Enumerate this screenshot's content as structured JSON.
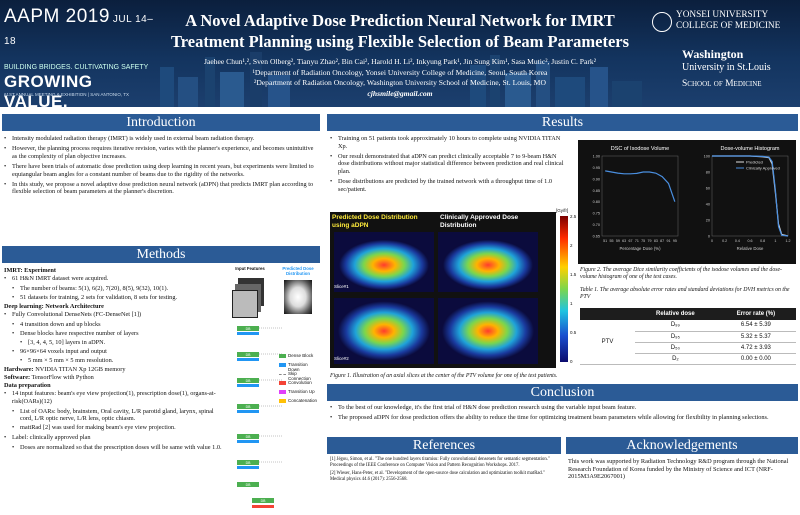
{
  "header": {
    "conf_main": "AAPM 2019",
    "conf_dates": "JUL 14–18",
    "tagline1": "BUILDING BRIDGES. CULTIVATING SAFETY",
    "tagline2": "GROWING VALUE.",
    "tagline3": "61ST ANNUAL MEETING & EXHIBITION | SAN ANTONIO, TX",
    "title_line1": "A Novel Adaptive Dose Prediction Neural Network for IMRT",
    "title_line2": "Treatment Planning using Flexible Selection of Beam Parameters",
    "authors": "Jaehee Chun¹,², Sven Olberg², Tianyu Zhao², Bin Cai², Harold H. Li², Inkyung Park¹, Jin Sung Kim¹, Sasa Mutic², Justin C. Park²",
    "affil1": "¹Department of Radiation Oncology, Yonsei University College of Medicine, Seoul, South Korea",
    "affil2": "²Department of Radiation Oncology, Washington University School of Medicine, St. Louis, MO",
    "email": "cjhsmile@gmail.com",
    "logo_yonsei1": "YONSEI UNIVERSITY",
    "logo_yonsei2": "COLLEGE OF MEDICINE",
    "logo_wash1": "Washington",
    "logo_wash2": "University in St.Louis",
    "logo_wash3": "School of Medicine"
  },
  "sections": {
    "intro": "Introduction",
    "methods": "Methods",
    "results": "Results",
    "conclusion": "Conclusion",
    "references": "References",
    "ack": "Acknowledgements"
  },
  "intro": [
    "Intensity modulated radiation therapy (IMRT) is widely used in external beam radiation therapy.",
    "However, the planning process requires iterative revision, varies with the planner's experience, and becomes unintuitive as the complexity of plan objective increases.",
    "There have been trials of automatic dose prediction using deep learning in recent years, but experiments were limited to equiangular beam angles for a constant number of beams due to the rigidity of the networks.",
    "In this study, we propose a novel adaptive dose prediction neural network (aDPN) that predicts IMRT plan according to flexible selection of beam parameters at the planner's discretion."
  ],
  "methods": {
    "h_exp": "IMRT: Experiment",
    "exp1": "61 H&N IMRT dataset were acquired.",
    "exp1a": "The number of beams: 5(1), 6(2), 7(20), 8(5), 9(32), 10(1).",
    "exp1b": "51 datasets for training, 2 sets for validation, 8 sets for testing.",
    "h_net": "Deep learning: Network Architecture",
    "net1": "Fully Convolutional DenseNets (FC-DenseNet [1])",
    "net1a": "4 transition down and up blocks",
    "net1b": "Dense blocks have respective number of layers",
    "net1b1": "[3, 4, 4, 5, 10] layers in aDPN.",
    "net1c": "96×96×64 voxels input and output",
    "net1c1": "5 mm × 5 mm × 5 mm resolution.",
    "hw_label": "Hardware:",
    "hw": " NVIDIA TITAN Xp 12GB memory",
    "sw_label": "Software:",
    "sw": " TensorFlow with Python",
    "h_data": "Data preparation",
    "d1": "14 input features: beam's eye view projection(1), prescription dose(1), organs-at-risk(OARs)(12)",
    "d1a": "List of OARs: body, brainstem, Oral cavity, L/R parotid gland, larynx, spinal cord, L/R optic nerve, L/R lens, optic chiasm.",
    "d1b": "mattRad [2] was used for making beam's eye view projection.",
    "d2": "Label: clinically approved plan",
    "d2a": "Doses are normalized so that the prescription doses will be same with value 1.0.",
    "diagram_in": "Input Features",
    "diagram_out": "Predicted Dose Distribution",
    "legend": [
      "Dense Block",
      "Transition Down",
      "Skip Connection",
      "Convolution",
      "Transition Up",
      "Concatenation"
    ],
    "legend_colors": [
      "#4caf50",
      "#2196f3",
      "#888888",
      "#f44336",
      "#e040fb",
      "#ffc107"
    ],
    "block_db": "DB"
  },
  "results": {
    "r1": "Training on 51 patients took approximately 10 hours to complete using NVIDIA TITAN Xp.",
    "r2": "Our result demonstrated that aDPN can predict clinically acceptable 7 to 9-beam H&N dose distributions without major statistical difference between prediction and real clinical plan.",
    "r3": "Dose distributions are predicted by the trained network with a throughput time of 1.0 sec/patient.",
    "img_left": "Predicted Dose Distribution using aDPN",
    "img_right": "Clinically Approved Dose Distribution",
    "slice1": "Slice#1",
    "slice2": "Slice#2",
    "cbar_unit": "[Gy/fr]",
    "cbar_ticks": [
      "2.5",
      "2",
      "1.5",
      "1",
      "0.5",
      "0"
    ],
    "fig1": "Figure 1. Illustration of an axial slices at the center of the PTV volume for one of the test patients.",
    "fig2": "Figure 2. The average Dice similarity coefficients of the isodose volumes and the dose-volume histogram of one of the test cases.",
    "table_caption": "Table 1. The average absolute error rates and standard deviations for DVH metrics on the PTV",
    "table_head": [
      "",
      "Relative dose",
      "Error rate (%)"
    ],
    "table_group": "PTV",
    "table_rows": [
      {
        "metric": "D₉₉",
        "err": "6.54 ± 5.39"
      },
      {
        "metric": "D₉₅",
        "err": "5.32 ± 5.37"
      },
      {
        "metric": "D₅₀",
        "err": "4.72 ± 3.93"
      },
      {
        "metric": "D₂",
        "err": "0.00 ± 0.00"
      }
    ]
  },
  "chart_data": [
    {
      "type": "line",
      "title": "DSC of Isodose Volume",
      "xlabel": "Percentage Dose (%)",
      "ylabel": "",
      "x": [
        51,
        55,
        59,
        63,
        67,
        71,
        75,
        79,
        83,
        87,
        91,
        95
      ],
      "series": [
        {
          "values": [
            0.935,
            0.93,
            0.925,
            0.922,
            0.922,
            0.924,
            0.93,
            0.93,
            0.925,
            0.91,
            0.88,
            0.8
          ]
        }
      ],
      "ylim": [
        0.65,
        1.0
      ],
      "yticks": [
        "1.00",
        "0.95",
        "0.90",
        "0.85",
        "0.80",
        "0.75",
        "0.70",
        "0.65"
      ],
      "xticks": [
        "51",
        "55",
        "59",
        "63",
        "67",
        "71",
        "75",
        "79",
        "83",
        "87",
        "91",
        "95"
      ],
      "color": "#4a8fe0"
    },
    {
      "type": "line",
      "title": "Dose-volume Histogram",
      "xlabel": "Relative Dose",
      "ylabel": "",
      "x": [
        0,
        0.2,
        0.4,
        0.6,
        0.8,
        0.9,
        0.95,
        1.0,
        1.05,
        1.1,
        1.2
      ],
      "series": [
        {
          "name": "Predicted",
          "values": [
            100,
            100,
            100,
            100,
            99,
            98,
            90,
            55,
            15,
            2,
            0
          ],
          "color": "#e0e0e0"
        },
        {
          "name": "Clinically Approved",
          "values": [
            100,
            100,
            100,
            100,
            99.5,
            98.5,
            93,
            58,
            12,
            1,
            0
          ],
          "color": "#4a8fe0"
        }
      ],
      "ylim": [
        0,
        100
      ],
      "xlim": [
        0,
        1.2
      ],
      "yticks": [
        "100",
        "80",
        "60",
        "40",
        "20",
        "0"
      ],
      "xticks": [
        "0",
        "0.2",
        "0.4",
        "0.6",
        "0.8",
        "1",
        "1.2"
      ]
    }
  ],
  "conclusion": [
    "To the best of our knowledge, it's the first trial of H&N dose prediction research using the variable input beam feature.",
    "The proposed aDPN for dose prediction offers the ability to reduce the time for optimizing treatment beam parameters while allowing for flexibility in planning selections."
  ],
  "references": [
    "[1] Jégou, Simon, et al. \"The one hundred layers tiramisu: Fully convolutional densenets for semantic segmentation.\" Proceedings of the IEEE Conference on Computer Vision and Pattern Recognition Workshops. 2017.",
    "[2] Wieser, Hans-Peter, et al. \"Development of the open-source dose calculation and optimization toolkit matRad.\" Medical physics 44.6 (2017): 2556-2568."
  ],
  "ack": "This work was supported by Radiation Technology R&D program through the National Research Foundation of Korea funded by the Ministry of Science and ICT (NRF-2015M3A9E2067001)"
}
